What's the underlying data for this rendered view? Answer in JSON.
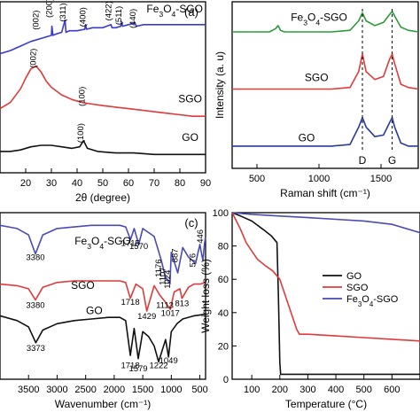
{
  "chart_data": [
    {
      "panel_label": "(a)",
      "type": "line",
      "xlabel": "2θ (degree)",
      "ylabel": "",
      "xlim": [
        10,
        90
      ],
      "xticks": [
        "20",
        "30",
        "40",
        "50",
        "60",
        "70",
        "80",
        "90"
      ],
      "series": [
        {
          "name": "Fe3O4-SGO",
          "color": "#3a3ad0",
          "x": [
            10,
            14,
            18,
            22,
            26,
            28,
            30,
            30.2,
            30.6,
            32,
            34,
            35.3,
            35.7,
            37,
            40,
            43,
            43.3,
            43.7,
            46,
            50,
            53.2,
            53.6,
            55,
            57,
            57.3,
            57.7,
            60,
            62.6,
            63,
            66,
            70,
            75,
            80,
            85,
            90
          ],
          "y": [
            0.78,
            0.8,
            0.83,
            0.86,
            0.88,
            0.89,
            0.9,
            0.96,
            0.9,
            0.91,
            0.92,
            1.0,
            0.92,
            0.93,
            0.93,
            0.94,
            0.97,
            0.94,
            0.95,
            0.95,
            0.97,
            0.95,
            0.95,
            0.96,
            0.99,
            0.96,
            0.97,
            0.98,
            0.96,
            0.97,
            0.97,
            0.97,
            0.97,
            0.97,
            0.97
          ]
        },
        {
          "name": "SGO",
          "color": "#e03a3a",
          "x": [
            10,
            14,
            18,
            20,
            22,
            24,
            26,
            28,
            30,
            34,
            38,
            42,
            46,
            50,
            55,
            60,
            65,
            70,
            75,
            80,
            85,
            90
          ],
          "y": [
            0.42,
            0.46,
            0.55,
            0.62,
            0.68,
            0.7,
            0.66,
            0.6,
            0.56,
            0.51,
            0.48,
            0.46,
            0.45,
            0.44,
            0.43,
            0.42,
            0.41,
            0.4,
            0.39,
            0.38,
            0.37,
            0.37
          ]
        },
        {
          "name": "GO",
          "color": "#111111",
          "x": [
            10,
            14,
            18,
            22,
            26,
            30,
            34,
            38,
            41,
            42.5,
            44,
            48,
            55,
            62,
            70,
            80,
            90
          ],
          "y": [
            0.14,
            0.14,
            0.15,
            0.17,
            0.18,
            0.18,
            0.17,
            0.16,
            0.17,
            0.21,
            0.16,
            0.14,
            0.13,
            0.13,
            0.12,
            0.12,
            0.12
          ]
        }
      ],
      "annotations": [
        {
          "text": "(002)",
          "x": 25,
          "y": 1.0
        },
        {
          "text": "(200)",
          "x": 30.2,
          "y": 1.08
        },
        {
          "text": "(311)",
          "x": 35.5,
          "y": 1.05
        },
        {
          "text": "(400)",
          "x": 43.3,
          "y": 1.02
        },
        {
          "text": "(422)",
          "x": 53.2,
          "y": 1.06
        },
        {
          "text": "(511)",
          "x": 57.3,
          "y": 1.03
        },
        {
          "text": "(440)",
          "x": 62.8,
          "y": 1.01
        },
        {
          "text": "(002)",
          "x": 24,
          "y": 0.75
        },
        {
          "text": "(100)",
          "x": 43,
          "y": 0.5
        },
        {
          "text": "(100)",
          "x": 42.5,
          "y": 0.26
        }
      ]
    },
    {
      "panel_label": "",
      "type": "line",
      "xlabel": "Raman shift (cm⁻¹)",
      "ylabel": "Intensity (a. u)",
      "xlim": [
        300,
        1800
      ],
      "xticks": [
        "500",
        "1000",
        "1500"
      ],
      "series": [
        {
          "name": "Fe3O4-SGO",
          "color": "#2e9a3c",
          "x": [
            300,
            500,
            600,
            650,
            670,
            690,
            720,
            900,
            1100,
            1250,
            1320,
            1350,
            1380,
            1450,
            1520,
            1570,
            1590,
            1610,
            1660,
            1720,
            1800
          ],
          "y": [
            0.86,
            0.86,
            0.86,
            0.88,
            0.9,
            0.87,
            0.86,
            0.86,
            0.86,
            0.87,
            0.93,
            0.98,
            0.93,
            0.9,
            0.92,
            0.97,
            0.99,
            0.96,
            0.89,
            0.87,
            0.86
          ]
        },
        {
          "name": "SGO",
          "color": "#e03a3a",
          "x": [
            300,
            600,
            900,
            1100,
            1250,
            1320,
            1350,
            1380,
            1450,
            1520,
            1570,
            1590,
            1610,
            1660,
            1720,
            1800
          ],
          "y": [
            0.5,
            0.5,
            0.5,
            0.5,
            0.51,
            0.61,
            0.72,
            0.61,
            0.56,
            0.58,
            0.69,
            0.72,
            0.66,
            0.53,
            0.51,
            0.5
          ]
        },
        {
          "name": "GO",
          "color": "#2a3aa0",
          "x": [
            300,
            600,
            900,
            1100,
            1250,
            1320,
            1350,
            1380,
            1450,
            1520,
            1570,
            1590,
            1610,
            1660,
            1720,
            1800
          ],
          "y": [
            0.14,
            0.14,
            0.14,
            0.14,
            0.15,
            0.26,
            0.32,
            0.26,
            0.2,
            0.21,
            0.29,
            0.32,
            0.26,
            0.16,
            0.14,
            0.14
          ]
        }
      ],
      "markers": [
        {
          "text": "D",
          "x": 1350
        },
        {
          "text": "G",
          "x": 1590
        }
      ]
    },
    {
      "panel_label": "(c)",
      "type": "line",
      "xlabel": "Wavenumber (cm⁻¹)",
      "ylabel": "",
      "xlim": [
        4000,
        400
      ],
      "xticks": [
        "3500",
        "3000",
        "2500",
        "2000",
        "1500",
        "1000",
        "500"
      ],
      "series": [
        {
          "name": "Fe3O4-SGO",
          "color": "#4a4ab8",
          "x": [
            4000,
            3700,
            3500,
            3380,
            3250,
            3000,
            2700,
            2400,
            2100,
            1900,
            1800,
            1715,
            1650,
            1570,
            1500,
            1300,
            1176,
            1107,
            1024,
            1000,
            887,
            800,
            700,
            576,
            500,
            470,
            446,
            420,
            400
          ],
          "y": [
            0.92,
            0.9,
            0.86,
            0.74,
            0.86,
            0.9,
            0.91,
            0.92,
            0.92,
            0.92,
            0.91,
            0.83,
            0.9,
            0.8,
            0.9,
            0.85,
            0.7,
            0.6,
            0.55,
            0.75,
            0.62,
            0.78,
            0.72,
            0.68,
            0.8,
            0.74,
            0.7,
            0.8,
            0.85
          ]
        },
        {
          "name": "SGO",
          "color": "#e03a3a",
          "x": [
            4000,
            3700,
            3500,
            3380,
            3250,
            3000,
            2700,
            2400,
            2100,
            1900,
            1800,
            1718,
            1620,
            1500,
            1429,
            1300,
            1200,
            1113,
            1017,
            950,
            850,
            813,
            700,
            600,
            500,
            400
          ],
          "y": [
            0.55,
            0.54,
            0.52,
            0.45,
            0.53,
            0.56,
            0.57,
            0.57,
            0.57,
            0.57,
            0.56,
            0.46,
            0.55,
            0.52,
            0.38,
            0.54,
            0.48,
            0.44,
            0.39,
            0.5,
            0.52,
            0.46,
            0.53,
            0.55,
            0.55,
            0.56
          ]
        },
        {
          "name": "GO",
          "color": "#111111",
          "x": [
            4000,
            3700,
            3500,
            3373,
            3250,
            3000,
            2700,
            2400,
            2100,
            1900,
            1800,
            1718,
            1650,
            1579,
            1500,
            1400,
            1300,
            1222,
            1100,
            1049,
            1000,
            900,
            800,
            600,
            400
          ],
          "y": [
            0.35,
            0.32,
            0.28,
            0.18,
            0.26,
            0.3,
            0.32,
            0.33,
            0.34,
            0.34,
            0.32,
            0.1,
            0.27,
            0.08,
            0.25,
            0.22,
            0.16,
            0.06,
            0.2,
            0.09,
            0.25,
            0.3,
            0.33,
            0.35,
            0.36
          ]
        }
      ],
      "annotations": [
        {
          "text": "3380",
          "x": 3380,
          "y": 0.7
        },
        {
          "text": "1715",
          "x": 1715,
          "y": 0.79
        },
        {
          "text": "1570",
          "x": 1570,
          "y": 0.77
        },
        {
          "text": "1176",
          "x": 1176,
          "y": 0.65
        },
        {
          "text": "1107",
          "x": 1107,
          "y": 0.6
        },
        {
          "text": "1024",
          "x": 1024,
          "y": 0.58
        },
        {
          "text": "887",
          "x": 887,
          "y": 0.73
        },
        {
          "text": "576",
          "x": 576,
          "y": 0.7
        },
        {
          "text": "446",
          "x": 446,
          "y": 0.85
        },
        {
          "text": "3380",
          "x": 3380,
          "y": 0.4
        },
        {
          "text": "1718",
          "x": 1718,
          "y": 0.42
        },
        {
          "text": "1113",
          "x": 1113,
          "y": 0.4
        },
        {
          "text": "1017",
          "x": 1017,
          "y": 0.35
        },
        {
          "text": "813",
          "x": 813,
          "y": 0.41
        },
        {
          "text": "1429",
          "x": 1429,
          "y": 0.33
        },
        {
          "text": "3373",
          "x": 3373,
          "y": 0.13
        },
        {
          "text": "1718",
          "x": 1718,
          "y": 0.02
        },
        {
          "text": "1579",
          "x": 1579,
          "y": 0.0
        },
        {
          "text": "1222",
          "x": 1222,
          "y": 0.02
        },
        {
          "text": "1049",
          "x": 1049,
          "y": 0.05
        }
      ]
    },
    {
      "panel_label": "",
      "type": "line",
      "xlabel": "Temperature (°C)",
      "ylabel": "Weight loss (%)",
      "xlim": [
        30,
        700
      ],
      "ylim": [
        0,
        100
      ],
      "xticks": [
        "100",
        "200",
        "300",
        "400",
        "500",
        "600"
      ],
      "yticks": [
        "0",
        "20",
        "40",
        "60",
        "80",
        "100"
      ],
      "legend": "top-right",
      "series": [
        {
          "name": "GO",
          "color": "#111111",
          "x": [
            30,
            60,
            100,
            140,
            170,
            190,
            195,
            200,
            203,
            210,
            300,
            400,
            500,
            600,
            700
          ],
          "y": [
            100,
            98,
            95,
            90,
            86,
            82,
            50,
            10,
            3,
            3,
            3,
            3,
            3,
            3,
            3
          ]
        },
        {
          "name": "SGO",
          "color": "#e03a3a",
          "x": [
            30,
            60,
            80,
            100,
            120,
            150,
            175,
            200,
            230,
            260,
            270,
            300,
            400,
            500,
            600,
            700
          ],
          "y": [
            100,
            90,
            82,
            77,
            72,
            68,
            65,
            60,
            45,
            30,
            27,
            27,
            26,
            25,
            24,
            23
          ]
        },
        {
          "name": "Fe3O4-SGO",
          "color": "#4a4ab8",
          "x": [
            30,
            100,
            200,
            300,
            400,
            500,
            600,
            700
          ],
          "y": [
            100,
            99,
            98,
            97,
            96,
            95,
            93,
            88
          ]
        }
      ]
    }
  ]
}
